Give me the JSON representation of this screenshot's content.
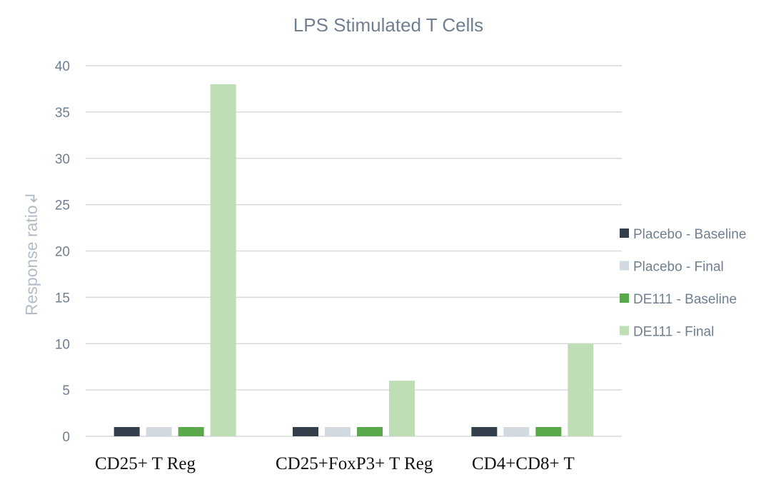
{
  "chart_data": {
    "type": "bar",
    "title": "LPS Stimulated T Cells",
    "xlabel": "",
    "ylabel": "Response ratio↲",
    "ylim": [
      0,
      40
    ],
    "yticks": [
      0,
      5,
      10,
      15,
      20,
      25,
      30,
      35,
      40
    ],
    "grid": true,
    "legend_position": "right",
    "categories": [
      "CD25+ T Reg",
      "CD25+FoxP3+ T Reg",
      "CD4+CD8+ T"
    ],
    "series": [
      {
        "name": "Placebo - Baseline",
        "color": "#333f4a",
        "values": [
          1,
          1,
          1
        ]
      },
      {
        "name": "Placebo - Final",
        "color": "#d3d9e0",
        "values": [
          1,
          1,
          1
        ]
      },
      {
        "name": "DE111 - Baseline",
        "color": "#59a84a",
        "values": [
          1,
          1,
          1
        ]
      },
      {
        "name": "DE111 - Final",
        "color": "#bfdeb5",
        "values": [
          38,
          6,
          10
        ]
      }
    ]
  }
}
